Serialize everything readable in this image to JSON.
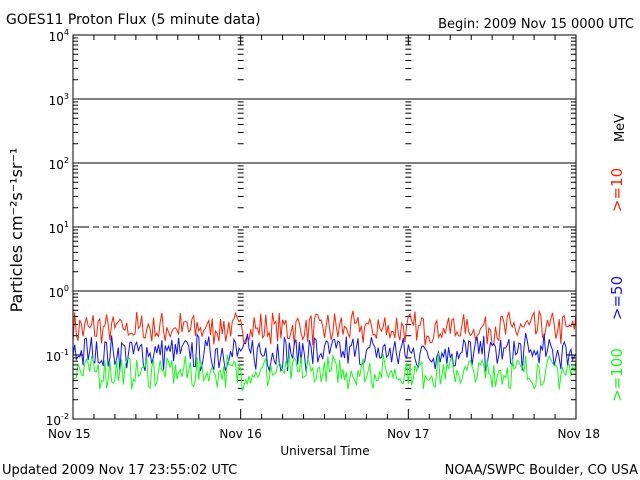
{
  "header": {
    "title": "GOES11 Proton Flux (5 minute data)",
    "begin": "Begin: 2009 Nov 15 0000 UTC"
  },
  "footer": {
    "updated": "Updated 2009 Nov 17 23:55:02 UTC",
    "credit": "NOAA/SWPC Boulder, CO USA"
  },
  "chart_data": {
    "type": "line",
    "title": "GOES11 Proton Flux (5 minute data)",
    "xlabel": "Universal Time",
    "ylabel": "Particles cm⁻²s⁻¹sr⁻¹",
    "yscale": "log",
    "ylim": [
      0.01,
      10000
    ],
    "y_ticks": [
      {
        "base": "10",
        "exp": "-2",
        "value": 0.01
      },
      {
        "base": "10",
        "exp": "-1",
        "value": 0.1
      },
      {
        "base": "10",
        "exp": "0",
        "value": 1
      },
      {
        "base": "10",
        "exp": "1",
        "value": 10
      },
      {
        "base": "10",
        "exp": "2",
        "value": 100
      },
      {
        "base": "10",
        "exp": "3",
        "value": 1000
      },
      {
        "base": "10",
        "exp": "4",
        "value": 10000
      }
    ],
    "x_ticks": [
      "Nov 15",
      "Nov 16",
      "Nov 17",
      "Nov 18"
    ],
    "xlim": [
      "2009-11-15",
      "2009-11-18"
    ],
    "reference_lines": [
      {
        "value": 1,
        "style": "solid"
      },
      {
        "value": 10,
        "style": "dashed"
      },
      {
        "value": 100,
        "style": "solid"
      },
      {
        "value": 1000,
        "style": "solid"
      }
    ],
    "unit": "MeV",
    "series": [
      {
        "name": ">=10",
        "color": "#ff2000",
        "typical_range": [
          0.15,
          0.45
        ]
      },
      {
        "name": ">=50",
        "color": "#1010ff",
        "typical_range": [
          0.06,
          0.2
        ]
      },
      {
        "name": ">=100",
        "color": "#10ff10",
        "typical_range": [
          0.03,
          0.1
        ]
      }
    ]
  }
}
